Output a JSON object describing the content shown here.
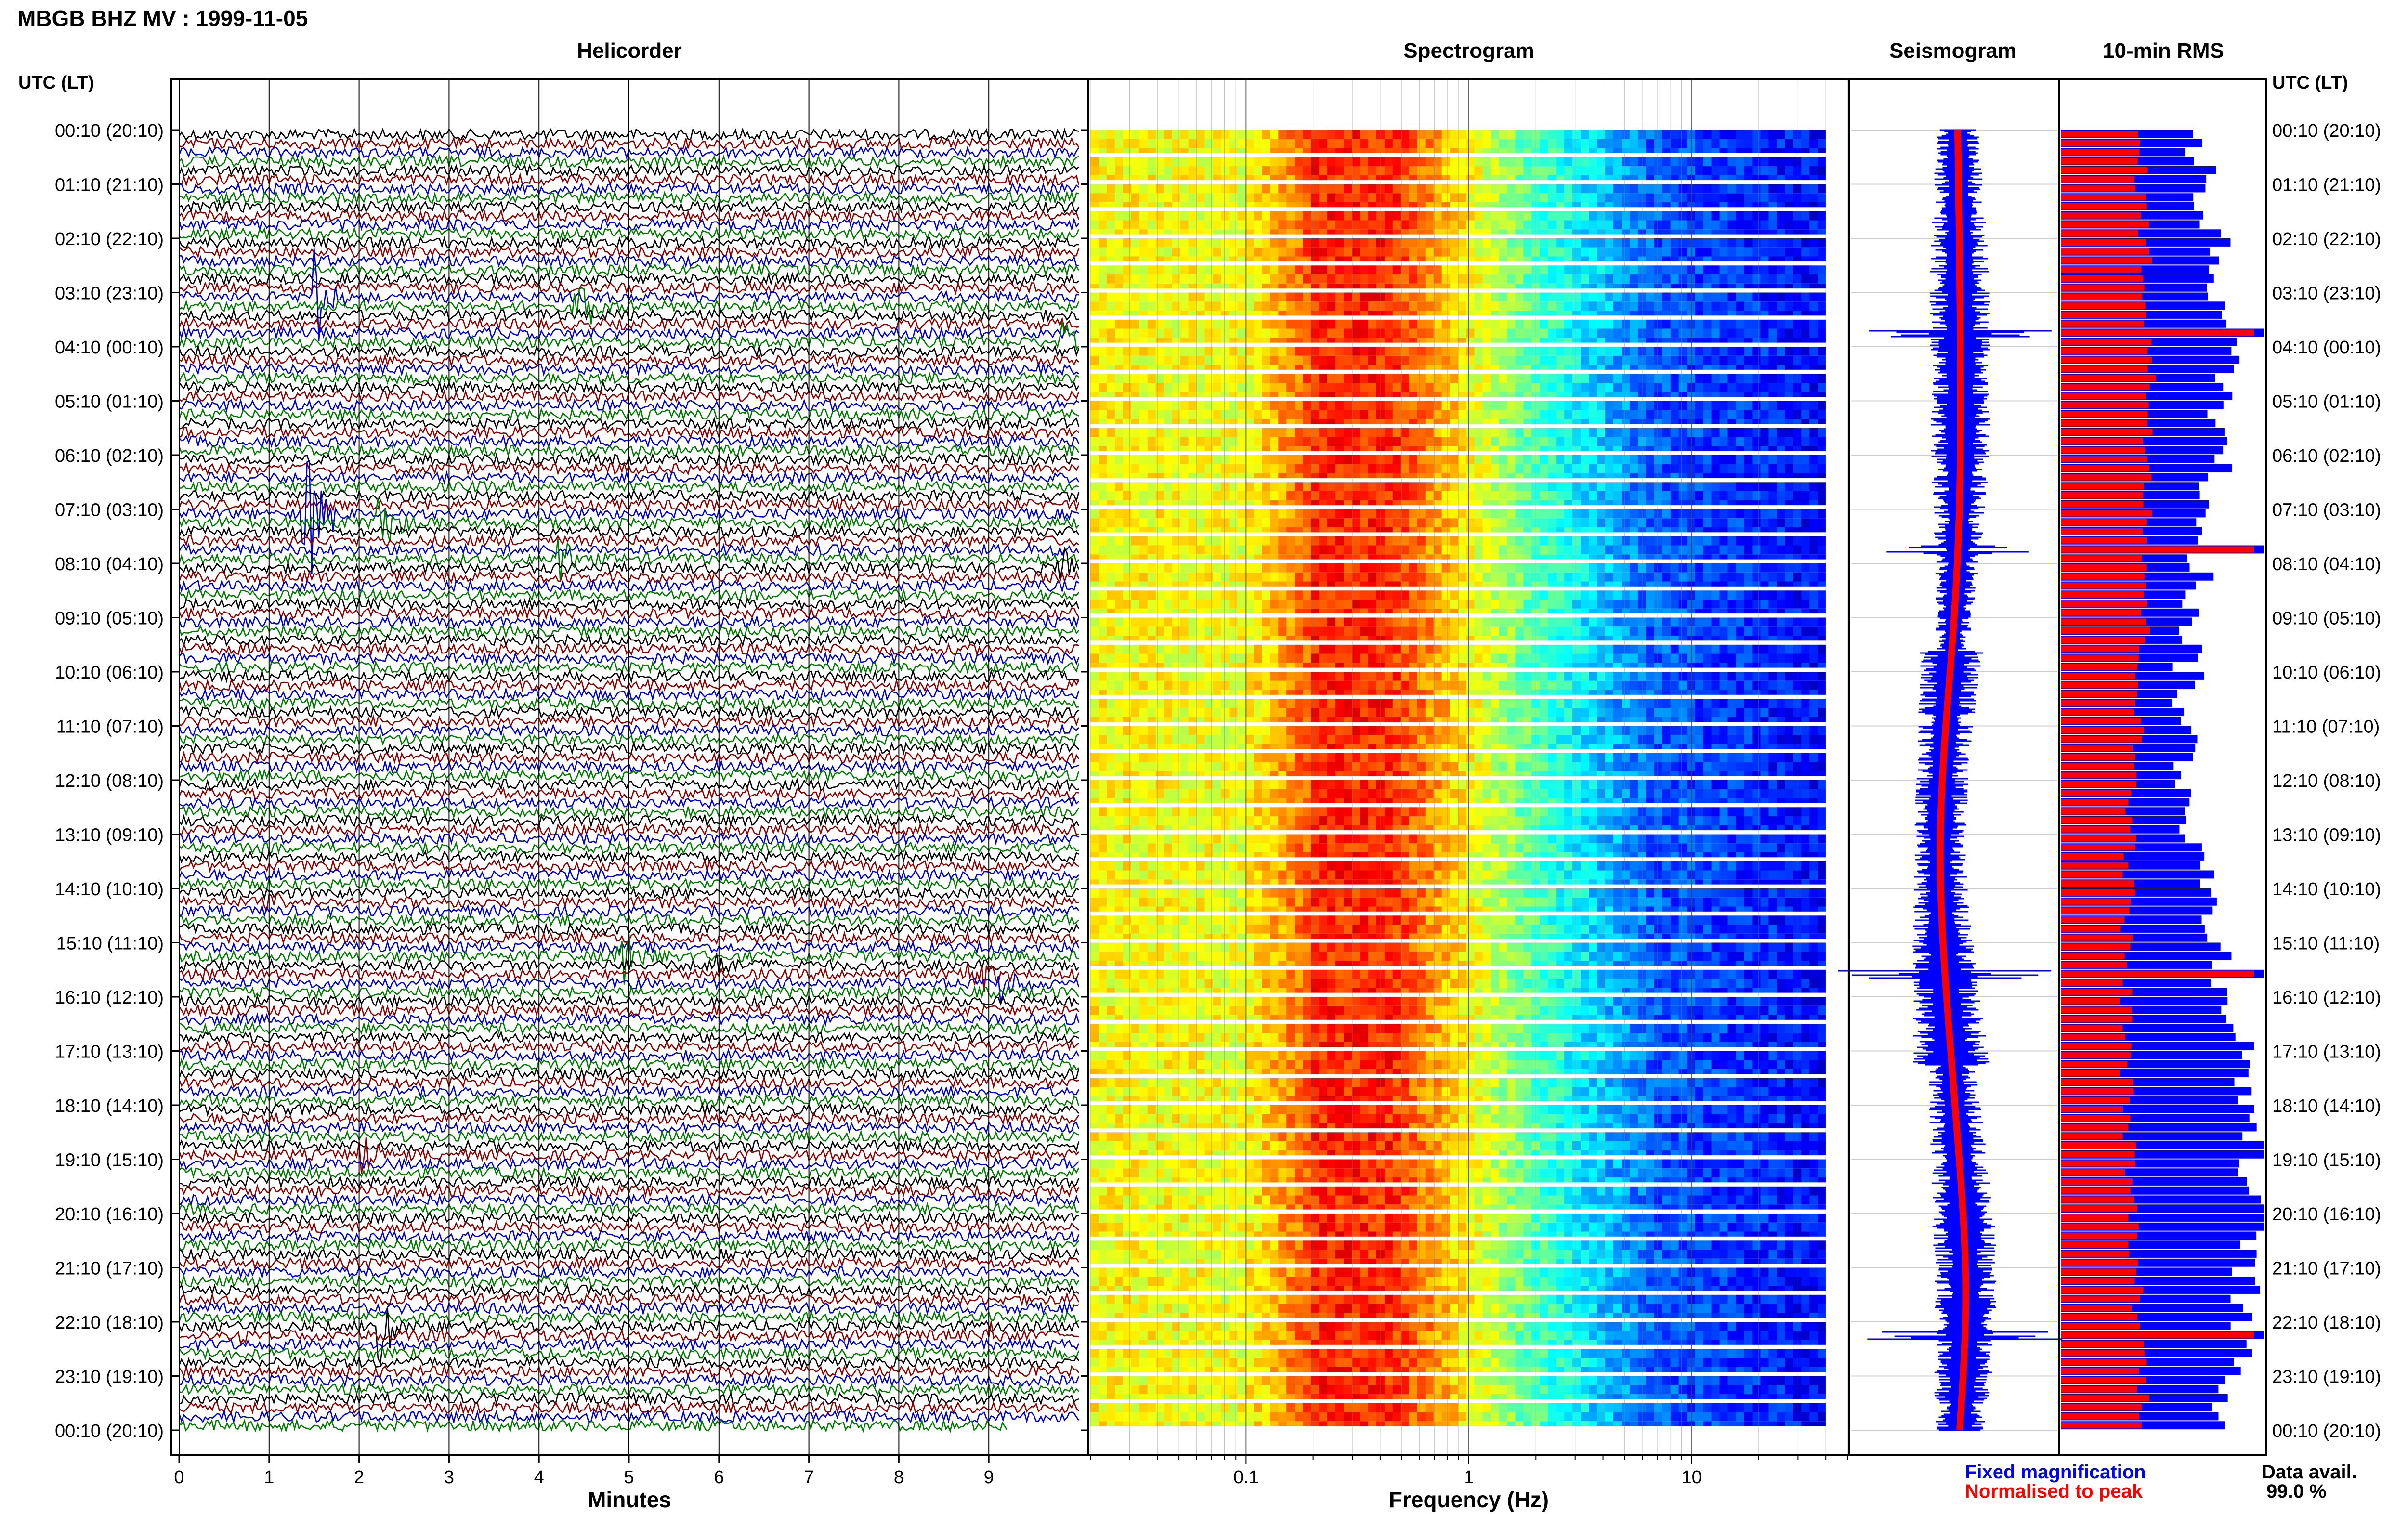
{
  "header": {
    "title": "MBGB BHZ MV : 1999-11-05"
  },
  "panels": {
    "helicorder": "Helicorder",
    "spectrogram": "Spectrogram",
    "seismogram": "Seismogram",
    "rms": "10-min RMS"
  },
  "time_axis": {
    "header": "UTC (LT)",
    "labels": [
      "00:10 (20:10)",
      "01:10 (21:10)",
      "02:10 (22:10)",
      "03:10 (23:10)",
      "04:10 (00:10)",
      "05:10 (01:10)",
      "06:10 (02:10)",
      "07:10 (03:10)",
      "08:10 (04:10)",
      "09:10 (05:10)",
      "10:10 (06:10)",
      "11:10 (07:10)",
      "12:10 (08:10)",
      "13:10 (09:10)",
      "14:10 (10:10)",
      "15:10 (11:10)",
      "16:10 (12:10)",
      "17:10 (13:10)",
      "18:10 (14:10)",
      "19:10 (15:10)",
      "20:10 (16:10)",
      "21:10 (17:10)",
      "22:10 (18:10)",
      "23:10 (19:10)",
      "00:10 (20:10)"
    ]
  },
  "legend": {
    "fixed": "Fixed magnification",
    "normalised": "Normalised to peak",
    "fixed_color": "#0000ff",
    "normalised_color": "#ff0000"
  },
  "data_avail": {
    "label": "Data avail.",
    "value": "99.0 %"
  },
  "colors": {
    "black": "#000000",
    "red": "#8b0000",
    "green": "#007a00",
    "blue": "#0000cc",
    "rms_blue": "#0000ff",
    "rms_red": "#ff0000"
  },
  "chart_data": [
    {
      "type": "line",
      "panel": "helicorder",
      "xlabel": "Minutes",
      "xlim": [
        0,
        10
      ],
      "x_ticks": [
        0,
        1,
        2,
        3,
        4,
        5,
        6,
        7,
        8,
        9
      ],
      "rows": 144,
      "row_minutes": 10,
      "trace_colors_cycle": [
        "black",
        "red",
        "blue",
        "green"
      ],
      "events": [
        {
          "utc": "03:10",
          "minute": 1.5,
          "amp": 2.4
        },
        {
          "utc": "03:20",
          "minute": 4.4,
          "amp": 2.0
        },
        {
          "utc": "04:00",
          "minute": 9.8,
          "amp": 1.0
        },
        {
          "utc": "07:10",
          "minute": 1.4,
          "amp": 4.5
        },
        {
          "utc": "07:20",
          "minute": 2.2,
          "amp": 2.2
        },
        {
          "utc": "08:00",
          "minute": 4.2,
          "amp": 1.3
        },
        {
          "utc": "08:10",
          "minute": 9.8,
          "amp": 1.0
        },
        {
          "utc": "14:20",
          "minute": 1.0,
          "amp": 0.6
        },
        {
          "utc": "15:20",
          "minute": 4.9,
          "amp": 3.2
        },
        {
          "utc": "15:30",
          "minute": 5.9,
          "amp": 1.3
        },
        {
          "utc": "15:40",
          "minute": 8.8,
          "amp": 1.6
        },
        {
          "utc": "15:50",
          "minute": 9.1,
          "amp": 1.3
        },
        {
          "utc": "19:00",
          "minute": 2.0,
          "amp": 1.0
        },
        {
          "utc": "22:10",
          "minute": 2.2,
          "amp": 2.0
        },
        {
          "utc": "22:20",
          "minute": 0.7,
          "amp": 0.6
        },
        {
          "utc": "22:20",
          "minute": 9.0,
          "amp": 0.7
        }
      ]
    },
    {
      "type": "heatmap",
      "panel": "spectrogram",
      "xlabel": "Frequency (Hz)",
      "xscale": "log",
      "xlim": [
        0.02,
        50
      ],
      "x_tick_labels": [
        "0.1",
        "1",
        "10"
      ],
      "x_ticks": [
        0.1,
        1,
        10
      ],
      "colormap": "jet",
      "peak_band_hz": [
        0.2,
        0.4
      ]
    },
    {
      "type": "line",
      "panel": "seismogram",
      "series": [
        {
          "name": "Fixed magnification",
          "color": "#0000ff"
        },
        {
          "name": "Normalised to peak",
          "color": "#ff0000"
        }
      ]
    },
    {
      "type": "bar",
      "panel": "rms",
      "orientation": "horizontal",
      "rows": 144,
      "series": [
        {
          "name": "Fixed magnification",
          "color": "#0000ff"
        },
        {
          "name": "Normalised to peak",
          "color": "#ff0000"
        }
      ],
      "peaks_utc": [
        "03:50",
        "07:50",
        "15:40",
        "22:20"
      ]
    }
  ]
}
